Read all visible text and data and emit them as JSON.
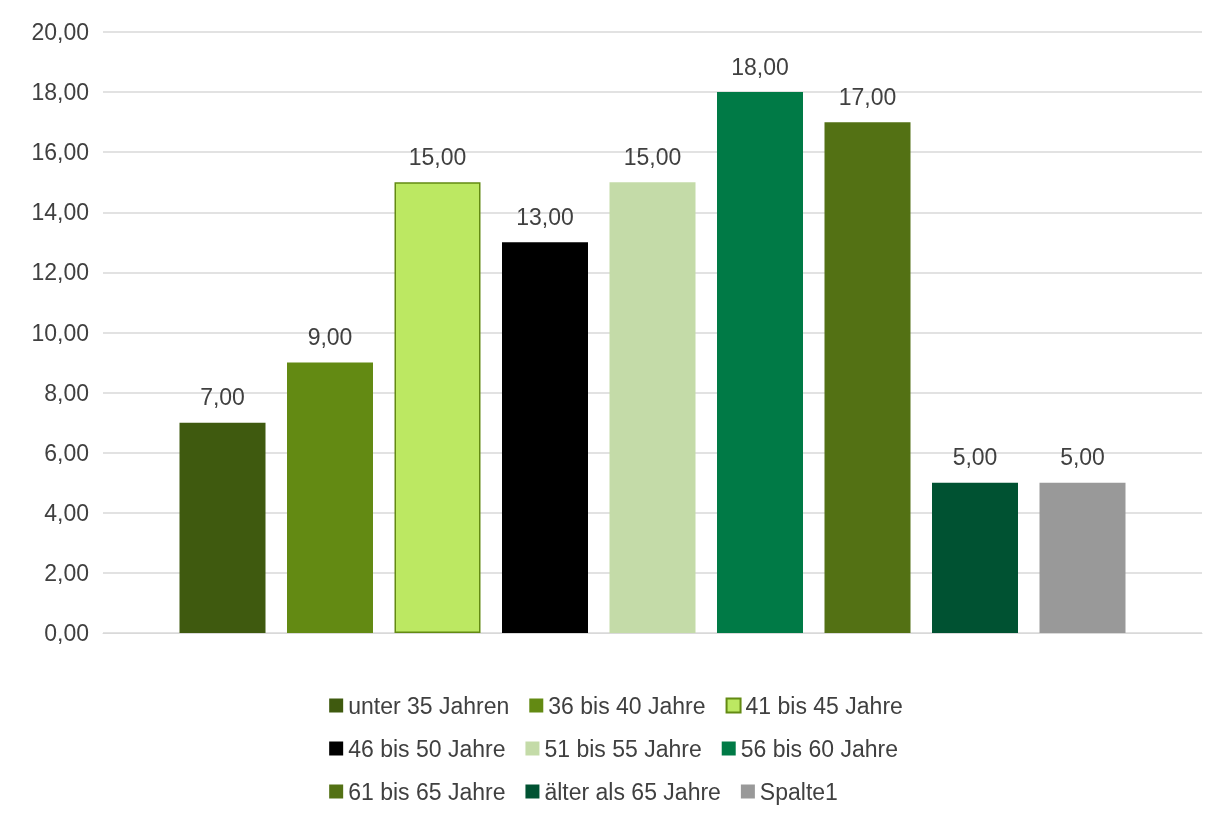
{
  "chart_data": {
    "type": "bar",
    "categories": [
      null
    ],
    "series": [
      {
        "name": "unter 35 Jahren",
        "color": "#3f5a0f",
        "values": [
          7
        ],
        "value_labels": [
          "7,00"
        ]
      },
      {
        "name": "36 bis 40 Jahre",
        "color": "#638a13",
        "values": [
          9
        ],
        "value_labels": [
          "9,00"
        ]
      },
      {
        "name": "41 bis 45 Jahre",
        "color": "#bce862",
        "values": [
          15
        ],
        "value_labels": [
          "15,00"
        ]
      },
      {
        "name": "46 bis 50 Jahre",
        "color": "#000000",
        "values": [
          13
        ],
        "value_labels": [
          "13,00"
        ]
      },
      {
        "name": "51 bis 55 Jahre",
        "color": "#c4dba8",
        "values": [
          15
        ],
        "value_labels": [
          "15,00"
        ]
      },
      {
        "name": "56 bis 60 Jahre",
        "color": "#007a46",
        "values": [
          18
        ],
        "value_labels": [
          "18,00"
        ]
      },
      {
        "name": "61 bis 65 Jahre",
        "color": "#537114",
        "values": [
          17
        ],
        "value_labels": [
          "17,00"
        ]
      },
      {
        "name": "älter als 65 Jahre",
        "color": "#005232",
        "values": [
          5
        ],
        "value_labels": [
          "5,00"
        ]
      },
      {
        "name": "Spalte1",
        "color": "#999999",
        "values": [
          5
        ],
        "value_labels": [
          "5,00"
        ]
      }
    ],
    "ylim": [
      0,
      20
    ],
    "yticks": [
      {
        "value": 0,
        "label": "0,00"
      },
      {
        "value": 2,
        "label": "2,00"
      },
      {
        "value": 4,
        "label": "4,00"
      },
      {
        "value": 6,
        "label": "6,00"
      },
      {
        "value": 8,
        "label": "8,00"
      },
      {
        "value": 10,
        "label": "10,00"
      },
      {
        "value": 12,
        "label": "12,00"
      },
      {
        "value": 14,
        "label": "14,00"
      },
      {
        "value": 16,
        "label": "16,00"
      },
      {
        "value": 18,
        "label": "18,00"
      },
      {
        "value": 20,
        "label": "20,00"
      }
    ],
    "grid": "y",
    "legend": "bottom"
  }
}
